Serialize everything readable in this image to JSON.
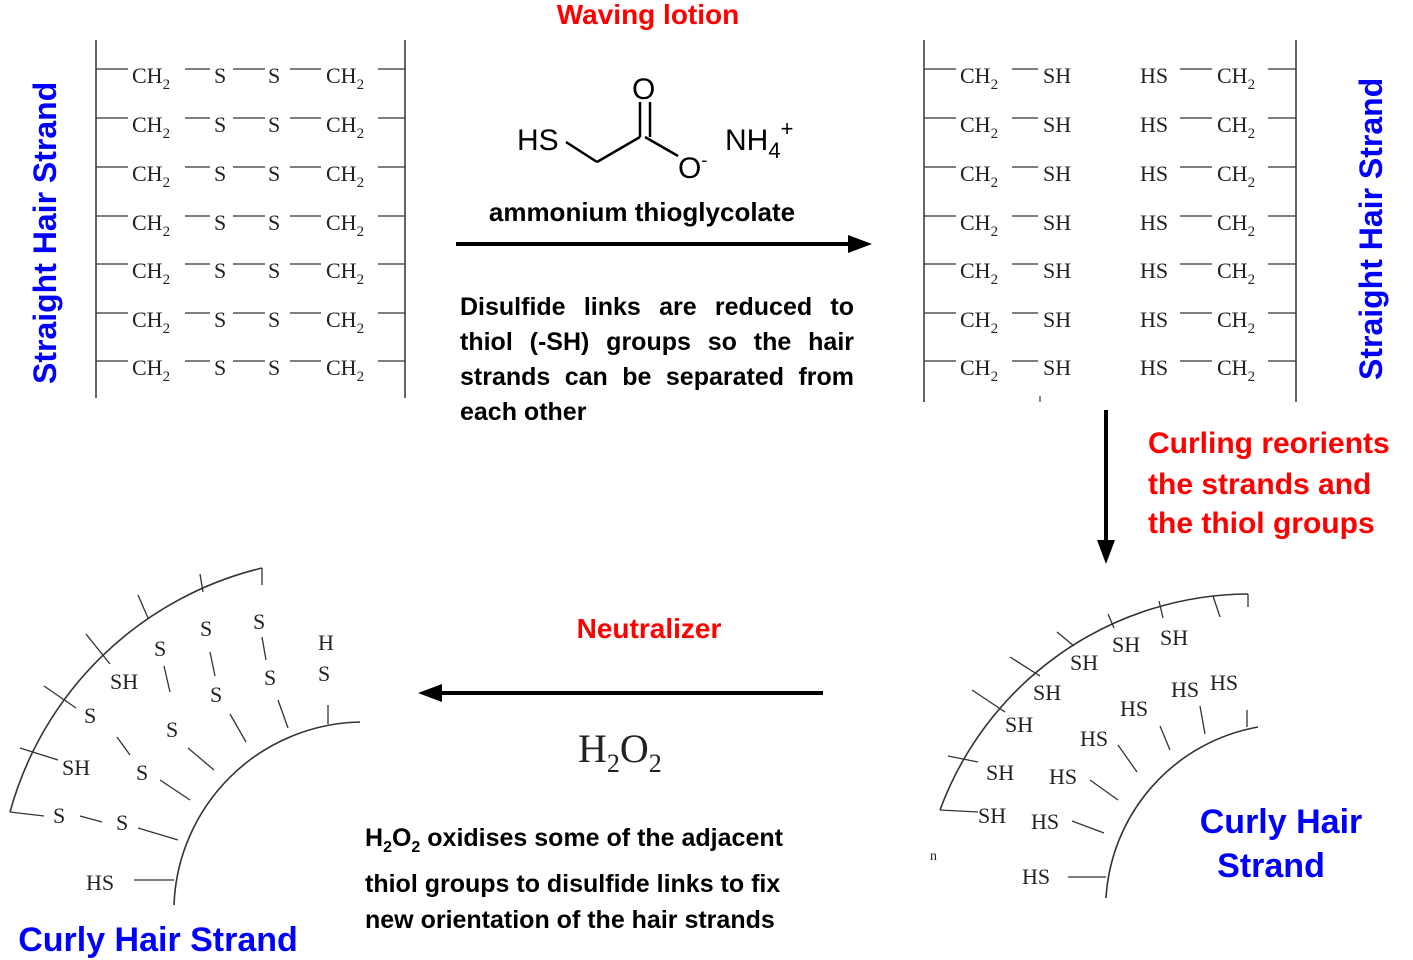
{
  "top": {
    "reagent_label": "Waving lotion",
    "reagent_name": "ammonium thioglycolate",
    "reagent_struct": {
      "hs": "HS",
      "o_double": "O",
      "o_minus": "O",
      "minus": "-",
      "cation": "NH",
      "cation_sub": "4",
      "cation_sup": "+"
    },
    "explanation": "Disulfide links are reduced to thiol (-SH) groups so the hair strands can be separated from each other"
  },
  "left_panel": {
    "label": "Straight Hair Strand",
    "row": {
      "ch2a": "CH",
      "sub": "2",
      "s1": "S",
      "s2": "S",
      "ch2b": "CH"
    },
    "row_count": 7
  },
  "right_panel": {
    "label": "Straight Hair Strand",
    "row": {
      "ch2": "CH",
      "sub": "2",
      "sh": "SH",
      "hs": "HS",
      "ch2b": "CH"
    },
    "row_count": 7
  },
  "curling": {
    "label_line1": "Curling reorients",
    "label_line2": "the strands and",
    "label_line3": "the thiol groups"
  },
  "curly_right": {
    "label_line1": "Curly Hair",
    "label_line2": "Strand",
    "inner_labels": [
      "SH",
      "SH",
      "SH",
      "SH",
      "SH",
      "SH",
      "SH",
      "SH",
      "HS",
      "HS",
      "HS",
      "HS",
      "HS",
      "HS",
      "HS"
    ],
    "corner_mark": "n"
  },
  "neutralizer": {
    "label": "Neutralizer",
    "formula": {
      "h": "H",
      "sub1": "2",
      "o": "O",
      "sub2": "2"
    },
    "explanation_formula": {
      "h": "H",
      "sub1": "2",
      "o": "O",
      "sub2": "2"
    },
    "explanation_line1": " oxidises some of the adjacent",
    "explanation_line2": "thiol groups to disulfide links to fix",
    "explanation_line3": "new orientation of the hair strands"
  },
  "curly_left": {
    "label": "Curly Hair Strand",
    "labels": {
      "s": "S",
      "sh": "SH",
      "hs": "HS",
      "h": "H"
    }
  },
  "colors": {
    "red": "#ff0000",
    "blue": "#0000ff",
    "black": "#000000",
    "gray": "#222222"
  }
}
